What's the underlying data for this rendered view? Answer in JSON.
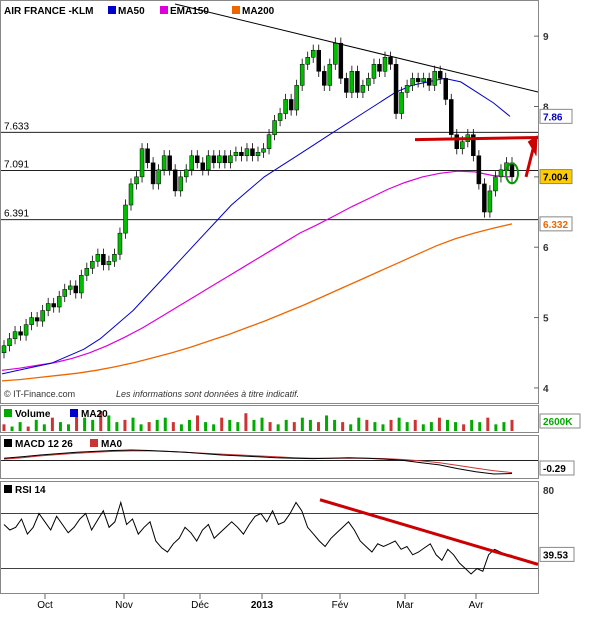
{
  "chart_data": {
    "type": "candlestick",
    "title": "AIR FRANCE -KLM",
    "legend": {
      "items": [
        {
          "name": "MA50",
          "color": "#0000cc"
        },
        {
          "name": "EMA150",
          "color": "#dd00dd"
        },
        {
          "name": "MA200",
          "color": "#ee6600"
        }
      ],
      "placement": "top-left"
    },
    "source": "© IT-Finance.com",
    "disclaimer": "Les informations sont données à titre indicatif.",
    "price_axis": {
      "ticks": [
        "9",
        "8",
        "7",
        "6",
        "5",
        "4"
      ],
      "range": [
        3.8,
        9.4
      ],
      "position": "right"
    },
    "x_labels": [
      "Oct",
      "Nov",
      "Déc",
      "2013",
      "Fév",
      "Mar",
      "Avr"
    ],
    "levels": [
      {
        "label": "7.633",
        "value": 7.633
      },
      {
        "label": "7.091",
        "value": 7.091
      },
      {
        "label": "6.391",
        "value": 6.391
      }
    ],
    "value_badges": [
      {
        "label": "7.86",
        "value": 7.86,
        "color": "#0000cc",
        "bg": "#ffffff"
      },
      {
        "label": "7.004",
        "value": 7.004,
        "color": "#000000",
        "bg": "#ffcc00"
      },
      {
        "label": "6.332",
        "value": 6.332,
        "color": "#ee6600",
        "bg": "#ffffff"
      }
    ],
    "close_series": [
      4.6,
      4.7,
      4.8,
      4.75,
      4.9,
      5.0,
      4.95,
      5.1,
      5.2,
      5.15,
      5.3,
      5.4,
      5.45,
      5.35,
      5.6,
      5.7,
      5.8,
      5.9,
      5.75,
      5.8,
      5.9,
      6.2,
      6.6,
      6.9,
      7.0,
      7.4,
      7.2,
      6.9,
      7.1,
      7.3,
      7.1,
      6.8,
      7.0,
      7.1,
      7.3,
      7.2,
      7.1,
      7.3,
      7.2,
      7.3,
      7.2,
      7.3,
      7.35,
      7.3,
      7.4,
      7.3,
      7.35,
      7.4,
      7.6,
      7.8,
      7.9,
      8.1,
      7.95,
      8.3,
      8.6,
      8.7,
      8.8,
      8.5,
      8.3,
      8.6,
      8.9,
      8.4,
      8.2,
      8.5,
      8.2,
      8.3,
      8.4,
      8.6,
      8.5,
      8.7,
      8.6,
      7.9,
      8.2,
      8.3,
      8.4,
      8.35,
      8.4,
      8.3,
      8.5,
      8.4,
      8.1,
      7.6,
      7.4,
      7.5,
      7.6,
      7.3,
      6.9,
      6.5,
      6.8,
      7.0,
      7.1,
      7.2,
      7.0
    ],
    "ma50": [
      4.2,
      4.25,
      4.3,
      4.35,
      4.45,
      4.55,
      4.7,
      4.9,
      5.1,
      5.35,
      5.6,
      5.85,
      6.1,
      6.35,
      6.6,
      6.8,
      7.0,
      7.15,
      7.3,
      7.45,
      7.6,
      7.75,
      7.9,
      8.05,
      8.2,
      8.3,
      8.35,
      8.4,
      8.35,
      8.2,
      8.05,
      7.86
    ],
    "ema150": [
      4.25,
      4.28,
      4.32,
      4.36,
      4.42,
      4.5,
      4.6,
      4.72,
      4.85,
      5.0,
      5.15,
      5.3,
      5.45,
      5.6,
      5.75,
      5.9,
      6.05,
      6.2,
      6.32,
      6.45,
      6.58,
      6.7,
      6.82,
      6.92,
      7.0,
      7.05,
      7.08,
      7.07,
      7.02,
      7.0
    ],
    "ma200": [
      4.1,
      4.12,
      4.15,
      4.18,
      4.21,
      4.25,
      4.3,
      4.36,
      4.43,
      4.5,
      4.58,
      4.67,
      4.76,
      4.86,
      4.96,
      5.07,
      5.18,
      5.3,
      5.42,
      5.54,
      5.66,
      5.78,
      5.9,
      6.02,
      6.12,
      6.2,
      6.27,
      6.332
    ],
    "volume": {
      "title": "Volume",
      "ma_label": "MA20",
      "badge": "2600K",
      "bars": [
        3,
        2,
        4,
        2,
        5,
        3,
        6,
        4,
        3,
        8,
        6,
        5,
        9,
        7,
        4,
        5,
        6,
        3,
        4,
        5,
        6,
        4,
        3,
        5,
        7,
        4,
        3,
        6,
        5,
        4,
        8,
        5,
        6,
        4,
        3,
        5,
        4,
        6,
        5,
        4,
        7,
        5,
        4,
        3,
        6,
        5,
        4,
        3,
        5,
        6,
        4,
        5,
        3,
        4,
        6,
        5,
        4,
        3,
        5,
        4,
        6,
        3,
        4,
        5
      ]
    },
    "macd": {
      "title": "MACD 12 26",
      "signal_label": "MA0",
      "badge": "-0.29",
      "macd": [
        0.05,
        0.08,
        0.12,
        0.15,
        0.18,
        0.2,
        0.22,
        0.23,
        0.22,
        0.2,
        0.18,
        0.15,
        0.12,
        0.1,
        0.08,
        0.06,
        0.05,
        0.04,
        0.05,
        0.06,
        0.05,
        0.03,
        0.0,
        -0.05,
        -0.1,
        -0.18,
        -0.25,
        -0.3,
        -0.29
      ],
      "signal": [
        0.03,
        0.06,
        0.1,
        0.13,
        0.16,
        0.18,
        0.2,
        0.21,
        0.21,
        0.2,
        0.18,
        0.16,
        0.14,
        0.12,
        0.1,
        0.08,
        0.06,
        0.05,
        0.05,
        0.05,
        0.05,
        0.04,
        0.02,
        -0.01,
        -0.05,
        -0.11,
        -0.17,
        -0.23,
        -0.27
      ]
    },
    "rsi": {
      "title": "RSI 14",
      "ticks": [
        "80"
      ],
      "badge": "39.53",
      "upper": 70,
      "lower": 30,
      "values": [
        62,
        58,
        60,
        66,
        55,
        60,
        70,
        64,
        58,
        68,
        62,
        56,
        60,
        66,
        70,
        58,
        65,
        72,
        60,
        64,
        78,
        62,
        66,
        55,
        60,
        64,
        50,
        45,
        42,
        48,
        52,
        60,
        56,
        50,
        58,
        62,
        52,
        56,
        60,
        64,
        60,
        55,
        62,
        68,
        70,
        64,
        72,
        62,
        64,
        70,
        78,
        72,
        60,
        55,
        50,
        46,
        52,
        56,
        60,
        64,
        58,
        50,
        46,
        42,
        48,
        46,
        48,
        50,
        44,
        46,
        40,
        42,
        45,
        48,
        40,
        36,
        44,
        40,
        34,
        30,
        26,
        30,
        28,
        40,
        44,
        42,
        40,
        39.53
      ]
    }
  }
}
